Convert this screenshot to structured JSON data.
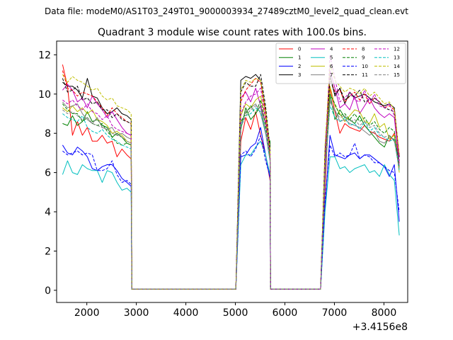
{
  "chart_data": {
    "type": "line",
    "suptitle": "Data file: modeM0/AS1T03_249T01_9000003934_27489cztM0_level2_quad_clean.evt",
    "title": "Quadrant 3 module wise count rates with 100.0s bins.",
    "xlabel": "",
    "ylabel": "",
    "offset_label": "+3.4156e8",
    "xlim": [
      1390,
      8480
    ],
    "ylim": [
      -0.62,
      12.7
    ],
    "xticks": [
      2000,
      3000,
      4000,
      5000,
      6000,
      7000,
      8000
    ],
    "xtick_labels": [
      "2000",
      "3000",
      "4000",
      "5000",
      "6000",
      "7000",
      "8000"
    ],
    "yticks": [
      0,
      2,
      4,
      6,
      8,
      10,
      12
    ],
    "ytick_labels": [
      "0",
      "2",
      "4",
      "6",
      "8",
      "10",
      "12"
    ],
    "grid": false,
    "legend": {
      "position": "top-right",
      "ncol": 4
    },
    "x_segments": [
      [
        1510,
        1610,
        1710,
        1810,
        1910,
        2010,
        2110,
        2210,
        2310,
        2410,
        2510,
        2610,
        2710,
        2810,
        2895,
        2910
      ],
      [
        2910,
        5010
      ],
      [
        5010,
        5110,
        5210,
        5310,
        5410,
        5510,
        5610,
        5700,
        5710
      ],
      [
        5710,
        6720
      ],
      [
        6720,
        6810,
        6910,
        7010,
        7110,
        7210,
        7310,
        7410,
        7510,
        7610,
        7710,
        7810,
        7910,
        8010,
        8110,
        8210,
        8310
      ]
    ],
    "series": [
      {
        "name": "0",
        "color": "#ff0000",
        "dash": "solid",
        "segments": [
          [
            11.5,
            10.4,
            7.9,
            8.6,
            7.9,
            8.3,
            7.6,
            7.6,
            7.9,
            7.5,
            7.6,
            6.8,
            7.2,
            6.9,
            6.7,
            0.05
          ],
          [
            0.05,
            0.05
          ],
          [
            0.05,
            7.6,
            8.8,
            8.2,
            9.1,
            7.9,
            6.9,
            5.6,
            0.05
          ],
          [
            0.05,
            0.05
          ],
          [
            0.05,
            5.2,
            10.3,
            9.1,
            8.0,
            8.5,
            8.3,
            8.2,
            8.1,
            8.4,
            8.1,
            8.0,
            7.8,
            7.7,
            7.6,
            8.0,
            6.5
          ]
        ]
      },
      {
        "name": "1",
        "color": "#008000",
        "dash": "solid",
        "segments": [
          [
            8.5,
            8.4,
            8.9,
            8.4,
            8.6,
            9.1,
            8.6,
            8.7,
            8.4,
            8.3,
            7.8,
            8.0,
            7.8,
            7.5,
            7.4,
            0.05
          ],
          [
            0.05,
            0.05
          ],
          [
            0.05,
            8.2,
            9.3,
            8.7,
            9.0,
            9.4,
            8.0,
            7.6,
            0.05
          ],
          [
            0.05,
            0.05
          ],
          [
            0.05,
            5.8,
            10.0,
            8.7,
            9.2,
            8.8,
            8.7,
            8.5,
            8.9,
            8.4,
            8.1,
            7.8,
            7.5,
            7.3,
            7.9,
            7.6,
            6.6
          ]
        ]
      },
      {
        "name": "2",
        "color": "#0000ff",
        "dash": "solid",
        "segments": [
          [
            7.4,
            7.0,
            6.9,
            7.3,
            7.1,
            6.8,
            6.2,
            6.1,
            6.3,
            6.4,
            6.4,
            6.1,
            5.7,
            5.5,
            5.3,
            0.05
          ],
          [
            0.05,
            0.05
          ],
          [
            0.05,
            6.8,
            6.9,
            7.3,
            7.5,
            8.3,
            6.9,
            5.7,
            0.05
          ],
          [
            0.05,
            0.05
          ],
          [
            0.05,
            4.3,
            7.9,
            6.9,
            6.8,
            6.7,
            6.9,
            7.0,
            6.7,
            6.9,
            6.9,
            6.7,
            6.5,
            6.3,
            5.8,
            6.4,
            3.5
          ]
        ]
      },
      {
        "name": "3",
        "color": "#000000",
        "dash": "solid",
        "segments": [
          [
            10.6,
            10.4,
            10.4,
            10.2,
            9.8,
            10.8,
            9.9,
            9.8,
            9.3,
            9.0,
            9.1,
            9.3,
            9.0,
            8.9,
            8.7,
            0.05
          ],
          [
            0.05,
            0.05
          ],
          [
            0.05,
            10.7,
            10.9,
            10.8,
            11.0,
            10.7,
            9.1,
            7.3,
            0.05
          ],
          [
            0.05,
            0.05
          ],
          [
            0.05,
            7.1,
            11.0,
            9.9,
            10.3,
            9.5,
            10.1,
            9.8,
            9.9,
            10.0,
            9.8,
            9.6,
            9.5,
            9.4,
            9.5,
            9.3,
            6.8
          ]
        ]
      },
      {
        "name": "4",
        "color": "#bf00bf",
        "dash": "solid",
        "segments": [
          [
            10.2,
            10.5,
            10.2,
            9.6,
            9.8,
            9.3,
            9.9,
            9.5,
            9.2,
            8.8,
            9.1,
            8.7,
            8.3,
            8.0,
            7.9,
            0.05
          ],
          [
            0.05,
            0.05
          ],
          [
            0.05,
            9.8,
            10.1,
            9.6,
            10.3,
            9.4,
            8.5,
            6.9,
            0.05
          ],
          [
            0.05,
            0.05
          ],
          [
            0.05,
            6.8,
            11.2,
            10.3,
            9.3,
            9.5,
            9.2,
            9.9,
            9.0,
            9.4,
            9.8,
            9.3,
            9.0,
            8.8,
            9.0,
            8.8,
            6.4
          ]
        ]
      },
      {
        "name": "5",
        "color": "#00bfbf",
        "dash": "solid",
        "segments": [
          [
            5.9,
            6.6,
            6.0,
            5.9,
            6.4,
            6.2,
            6.1,
            6.1,
            5.5,
            6.1,
            6.0,
            5.5,
            5.1,
            5.2,
            5.0,
            0.05
          ],
          [
            0.05,
            0.05
          ],
          [
            0.05,
            6.4,
            6.9,
            6.9,
            7.3,
            7.6,
            6.9,
            5.9,
            0.05
          ],
          [
            0.05,
            0.05
          ],
          [
            0.05,
            4.0,
            6.8,
            6.8,
            6.2,
            6.3,
            6.0,
            6.2,
            6.3,
            6.4,
            6.0,
            6.1,
            5.8,
            6.4,
            5.9,
            5.6,
            2.8
          ]
        ]
      },
      {
        "name": "6",
        "color": "#bfbf00",
        "dash": "solid",
        "segments": [
          [
            9.3,
            9.1,
            9.4,
            9.1,
            9.3,
            9.0,
            9.2,
            8.7,
            8.6,
            8.4,
            8.0,
            8.1,
            7.9,
            7.6,
            7.5,
            0.05
          ],
          [
            0.05,
            0.05
          ],
          [
            0.05,
            8.9,
            9.5,
            9.3,
            9.7,
            9.9,
            8.7,
            6.8,
            0.05
          ],
          [
            0.05,
            0.05
          ],
          [
            0.05,
            6.1,
            10.4,
            9.4,
            9.0,
            8.6,
            8.9,
            9.2,
            9.1,
            8.6,
            8.5,
            9.0,
            8.3,
            8.5,
            7.7,
            7.9,
            6.0
          ]
        ]
      },
      {
        "name": "7",
        "color": "#808080",
        "dash": "solid",
        "segments": [
          [
            9.6,
            9.3,
            9.4,
            9.5,
            9.0,
            8.7,
            8.5,
            8.8,
            8.3,
            8.2,
            8.3,
            7.9,
            8.0,
            7.8,
            7.7,
            0.05
          ],
          [
            0.05,
            0.05
          ],
          [
            0.05,
            8.5,
            9.1,
            9.3,
            9.5,
            9.0,
            8.0,
            6.6,
            0.05
          ],
          [
            0.05,
            0.05
          ],
          [
            0.05,
            5.9,
            9.6,
            9.2,
            8.6,
            8.7,
            8.5,
            8.4,
            8.3,
            8.1,
            7.9,
            8.1,
            7.6,
            7.5,
            7.8,
            7.7,
            6.2
          ]
        ]
      },
      {
        "name": "8",
        "color": "#ff0000",
        "dash": "dashed",
        "segments": [
          [
            11.2,
            10.3,
            10.2,
            9.9,
            10.1,
            10.0,
            9.9,
            9.6,
            9.3,
            8.9,
            9.3,
            9.0,
            8.8,
            8.6,
            8.5,
            0.05
          ],
          [
            0.05,
            0.05
          ],
          [
            0.05,
            9.6,
            10.2,
            10.5,
            10.8,
            10.6,
            9.0,
            7.0,
            0.05
          ],
          [
            0.05,
            0.05
          ],
          [
            0.05,
            6.9,
            10.8,
            10.1,
            10.2,
            9.6,
            9.9,
            10.1,
            9.7,
            10.0,
            9.5,
            9.8,
            9.6,
            9.3,
            9.4,
            9.2,
            6.9
          ]
        ]
      },
      {
        "name": "9",
        "color": "#008000",
        "dash": "dashed",
        "segments": [
          [
            9.5,
            9.2,
            9.0,
            9.0,
            8.6,
            8.8,
            8.5,
            8.4,
            8.5,
            8.1,
            7.8,
            7.5,
            7.4,
            7.5,
            7.4,
            0.05
          ],
          [
            0.05,
            0.05
          ],
          [
            0.05,
            8.6,
            9.0,
            9.4,
            9.0,
            9.7,
            8.4,
            6.8,
            0.05
          ],
          [
            0.05,
            0.05
          ],
          [
            0.05,
            6.3,
            10.0,
            9.5,
            8.9,
            9.0,
            8.7,
            9.0,
            8.6,
            8.8,
            8.4,
            8.6,
            8.2,
            8.0,
            8.3,
            8.1,
            6.3
          ]
        ]
      },
      {
        "name": "10",
        "color": "#0000ff",
        "dash": "dashed",
        "segments": [
          [
            7.1,
            6.9,
            7.0,
            7.1,
            6.9,
            7.0,
            6.9,
            6.1,
            6.1,
            6.2,
            6.6,
            5.9,
            5.5,
            5.6,
            5.4,
            0.05
          ],
          [
            0.05,
            0.05
          ],
          [
            0.05,
            6.9,
            7.1,
            6.8,
            7.2,
            7.9,
            6.6,
            5.8,
            0.05
          ],
          [
            0.05,
            0.05
          ],
          [
            0.05,
            4.6,
            7.4,
            6.8,
            7.0,
            6.8,
            6.9,
            7.5,
            6.7,
            6.9,
            6.8,
            6.5,
            6.5,
            6.3,
            6.1,
            6.0,
            4.0
          ]
        ]
      },
      {
        "name": "11",
        "color": "#000000",
        "dash": "dashed",
        "segments": [
          [
            10.8,
            10.1,
            10.2,
            10.4,
            9.7,
            9.8,
            9.5,
            9.6,
            9.2,
            9.2,
            8.8,
            9.0,
            8.7,
            8.6,
            8.5,
            0.05
          ],
          [
            0.05,
            0.05
          ],
          [
            0.05,
            10.1,
            10.6,
            10.4,
            10.4,
            11.0,
            9.4,
            7.2,
            0.05
          ],
          [
            0.05,
            0.05
          ],
          [
            0.05,
            7.0,
            10.8,
            10.0,
            10.3,
            9.7,
            9.9,
            9.9,
            10.2,
            9.6,
            9.7,
            9.8,
            9.6,
            9.3,
            9.2,
            9.1,
            6.7
          ]
        ]
      },
      {
        "name": "12",
        "color": "#bf00bf",
        "dash": "dashed",
        "segments": [
          [
            9.7,
            9.5,
            9.7,
            9.4,
            9.2,
            9.5,
            9.1,
            9.0,
            8.7,
            8.9,
            8.4,
            8.2,
            8.1,
            8.0,
            7.9,
            0.05
          ],
          [
            0.05,
            0.05
          ],
          [
            0.05,
            9.0,
            9.6,
            9.9,
            10.0,
            10.3,
            8.7,
            7.0,
            0.05
          ],
          [
            0.05,
            0.05
          ],
          [
            0.05,
            6.5,
            12.0,
            10.8,
            9.6,
            9.8,
            10.1,
            9.7,
            9.6,
            10.2,
            9.5,
            10.0,
            9.4,
            9.3,
            9.5,
            8.9,
            6.6
          ]
        ]
      },
      {
        "name": "13",
        "color": "#00bfbf",
        "dash": "dashed",
        "segments": [
          [
            9.0,
            8.8,
            8.7,
            8.6,
            8.9,
            8.3,
            8.1,
            8.0,
            8.2,
            7.9,
            7.7,
            7.6,
            7.4,
            7.3,
            7.2,
            0.05
          ],
          [
            0.05,
            0.05
          ],
          [
            0.05,
            8.4,
            8.9,
            9.0,
            9.3,
            9.1,
            8.1,
            6.6,
            0.05
          ],
          [
            0.05,
            0.05
          ],
          [
            0.05,
            5.9,
            9.4,
            8.8,
            8.6,
            8.8,
            8.4,
            8.5,
            8.2,
            8.6,
            8.1,
            8.3,
            7.9,
            7.8,
            7.6,
            7.7,
            6.1
          ]
        ]
      },
      {
        "name": "14",
        "color": "#bfbf00",
        "dash": "dashed",
        "segments": [
          [
            11.0,
            10.6,
            10.9,
            10.7,
            10.6,
            10.4,
            10.2,
            10.3,
            9.9,
            9.7,
            9.8,
            9.4,
            9.3,
            9.2,
            9.0,
            0.05
          ],
          [
            0.05,
            0.05
          ],
          [
            0.05,
            10.2,
            10.7,
            10.6,
            10.8,
            10.7,
            9.2,
            7.2,
            0.05
          ],
          [
            0.05,
            0.05
          ],
          [
            0.05,
            7.4,
            11.5,
            10.7,
            10.4,
            10.1,
            10.3,
            10.2,
            10.0,
            10.3,
            9.9,
            10.1,
            9.8,
            9.5,
            9.6,
            9.2,
            6.9
          ]
        ]
      },
      {
        "name": "15",
        "color": "#808080",
        "dash": "dashed",
        "segments": [
          [
            9.2,
            9.0,
            9.1,
            8.9,
            8.7,
            8.8,
            8.5,
            8.4,
            8.3,
            8.2,
            8.0,
            7.9,
            7.8,
            7.6,
            7.5,
            0.05
          ],
          [
            0.05,
            0.05
          ],
          [
            0.05,
            8.3,
            8.9,
            9.2,
            9.4,
            9.3,
            8.2,
            6.7,
            0.05
          ],
          [
            0.05,
            0.05
          ],
          [
            0.05,
            6.0,
            9.7,
            9.1,
            8.8,
            8.9,
            8.6,
            8.7,
            8.4,
            8.6,
            8.3,
            8.4,
            8.0,
            7.8,
            7.9,
            7.6,
            6.2
          ]
        ]
      }
    ]
  }
}
